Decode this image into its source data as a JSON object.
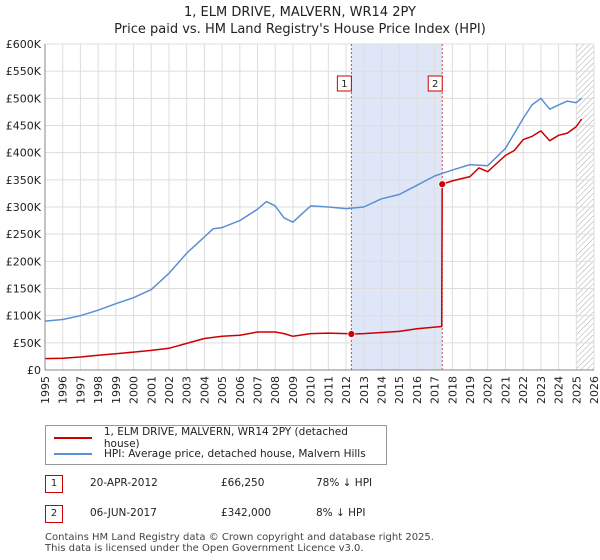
{
  "title": {
    "line1": "1, ELM DRIVE, MALVERN, WR14 2PY",
    "line2": "Price paid vs. HM Land Registry's House Price Index (HPI)"
  },
  "chart_data": {
    "type": "line",
    "title": "1, ELM DRIVE, MALVERN, WR14 2PY — Price paid vs. HM Land Registry's House Price Index (HPI)",
    "xlabel": "",
    "ylabel": "",
    "xlim": [
      1995,
      2026
    ],
    "ylim": [
      0,
      600000
    ],
    "x_ticks": [
      1995,
      1996,
      1997,
      1998,
      1999,
      2000,
      2001,
      2002,
      2003,
      2004,
      2005,
      2006,
      2007,
      2008,
      2009,
      2010,
      2011,
      2012,
      2013,
      2014,
      2015,
      2016,
      2017,
      2018,
      2019,
      2020,
      2021,
      2022,
      2023,
      2024,
      2025,
      2026
    ],
    "y_ticks": [
      0,
      50000,
      100000,
      150000,
      200000,
      250000,
      300000,
      350000,
      400000,
      450000,
      500000,
      550000,
      600000
    ],
    "y_tick_labels": [
      "£0",
      "£50K",
      "£100K",
      "£150K",
      "£200K",
      "£250K",
      "£300K",
      "£350K",
      "£400K",
      "£450K",
      "£500K",
      "£550K",
      "£600K"
    ],
    "grid": true,
    "shaded_range": [
      2012.3,
      2017.43
    ],
    "projection_start": 2025.0,
    "series": [
      {
        "name": "1, ELM DRIVE, MALVERN, WR14 2PY (detached house)",
        "color": "#cc0000",
        "x": [
          1995,
          1996,
          1997,
          1998,
          1999,
          2000,
          2001,
          2002,
          2003,
          2004,
          2005,
          2006,
          2007,
          2008,
          2008.5,
          2009,
          2010,
          2011,
          2012,
          2012.3,
          2013,
          2014,
          2015,
          2016,
          2017,
          2017.4,
          2017.43,
          2018,
          2019,
          2019.5,
          2020,
          2020.5,
          2021,
          2021.5,
          2022,
          2022.5,
          2023,
          2023.5,
          2024,
          2024.5,
          2025,
          2025.3
        ],
        "values": [
          21000,
          21500,
          24000,
          27000,
          30000,
          33000,
          36000,
          40000,
          49000,
          58000,
          62000,
          64000,
          70000,
          70000,
          67000,
          62000,
          67000,
          68000,
          67000,
          66250,
          67000,
          69000,
          71000,
          76000,
          79000,
          80000,
          342000,
          348000,
          356000,
          372000,
          365000,
          380000,
          395000,
          404000,
          424000,
          430000,
          440000,
          422000,
          432000,
          436000,
          448000,
          462000
        ]
      },
      {
        "name": "HPI: Average price, detached house, Malvern Hills",
        "color": "#5b8fd4",
        "x": [
          1995,
          1996,
          1997,
          1998,
          1999,
          2000,
          2001,
          2002,
          2003,
          2004,
          2004.5,
          2005,
          2006,
          2007,
          2007.5,
          2008,
          2008.5,
          2009,
          2010,
          2011,
          2012,
          2013,
          2014,
          2015,
          2016,
          2017,
          2018,
          2019,
          2020,
          2021,
          2022,
          2022.5,
          2023,
          2023.5,
          2024,
          2024.5,
          2025,
          2025.3
        ],
        "values": [
          90000,
          93000,
          100000,
          110000,
          122000,
          133000,
          148000,
          178000,
          215000,
          245000,
          260000,
          262000,
          275000,
          296000,
          310000,
          302000,
          280000,
          272000,
          302000,
          300000,
          297000,
          300000,
          315000,
          323000,
          340000,
          357000,
          368000,
          378000,
          376000,
          408000,
          463000,
          488000,
          500000,
          480000,
          488000,
          495000,
          492000,
          500000
        ]
      }
    ],
    "sales": [
      {
        "marker": "1",
        "x": 2012.3,
        "value": 66250,
        "date": "20-APR-2012",
        "price": "£66,250",
        "hpi_diff": "78% ↓ HPI"
      },
      {
        "marker": "2",
        "x": 2017.43,
        "value": 342000,
        "date": "06-JUN-2017",
        "price": "£342,000",
        "hpi_diff": "8% ↓ HPI"
      }
    ]
  },
  "legend": {
    "property": "1, ELM DRIVE, MALVERN, WR14 2PY (detached house)",
    "hpi": "HPI: Average price, detached house, Malvern Hills"
  },
  "colors": {
    "property_line": "#cc0000",
    "hpi_line": "#5b8fd4",
    "shade": "#dfe6f7",
    "grid": "#dddddd"
  },
  "footer": {
    "line1": "Contains HM Land Registry data © Crown copyright and database right 2025.",
    "line2": "This data is licensed under the Open Government Licence v3.0."
  }
}
